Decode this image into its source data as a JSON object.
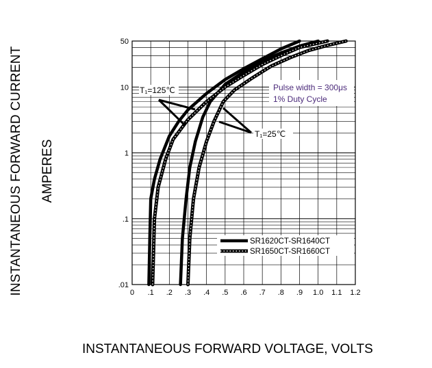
{
  "chart_data": {
    "type": "line",
    "title": "",
    "xlabel": "INSTANTANEOUS FORWARD VOLTAGE, VOLTS",
    "ylabel_line1": "INSTANTANEOUS FORWARD CURRENT",
    "ylabel_line2": "AMPERES",
    "xlim": [
      0,
      1.2
    ],
    "ylim": [
      0.01,
      50
    ],
    "yscale": "log",
    "grid": true,
    "x_ticks": [
      "0",
      ".1",
      ".2",
      ".3",
      ".4",
      ".5",
      ".6",
      ".7",
      ".8",
      ".9",
      "1.0",
      "1.1",
      "1.2"
    ],
    "y_ticks": [
      {
        "value": 0.01,
        "label": ".01"
      },
      {
        "value": 0.1,
        "label": ".1"
      },
      {
        "value": 1,
        "label": "1"
      },
      {
        "value": 10,
        "label": "10"
      },
      {
        "value": 50,
        "label": "50"
      }
    ],
    "annotations": {
      "pulse_line1": "Pulse width = 300μs",
      "pulse_line2": "1% Duty Cycle",
      "tj125": "T₁=125℃",
      "tj25": "T₁=25℃"
    },
    "series": [
      {
        "name": "SR1620CT-SR1640CT",
        "style": "solid",
        "condition": "TJ=125",
        "points": [
          [
            0.09,
            0.01
          ],
          [
            0.095,
            0.05
          ],
          [
            0.1,
            0.2
          ],
          [
            0.12,
            0.4
          ],
          [
            0.15,
            0.8
          ],
          [
            0.2,
            1.8
          ],
          [
            0.25,
            3
          ],
          [
            0.3,
            4.5
          ],
          [
            0.4,
            8
          ],
          [
            0.5,
            13
          ],
          [
            0.6,
            19
          ],
          [
            0.7,
            27
          ],
          [
            0.8,
            38
          ],
          [
            0.9,
            50
          ]
        ]
      },
      {
        "name": "SR1620CT-SR1640CT",
        "style": "solid",
        "condition": "TJ=25",
        "points": [
          [
            0.26,
            0.01
          ],
          [
            0.27,
            0.05
          ],
          [
            0.29,
            0.2
          ],
          [
            0.31,
            0.6
          ],
          [
            0.34,
            1.5
          ],
          [
            0.38,
            3.5
          ],
          [
            0.42,
            6
          ],
          [
            0.5,
            11
          ],
          [
            0.6,
            17
          ],
          [
            0.7,
            25
          ],
          [
            0.8,
            33
          ],
          [
            0.9,
            42
          ],
          [
            1.0,
            50
          ]
        ]
      },
      {
        "name": "SR1650CT-SR1660CT",
        "style": "dotted",
        "condition": "TJ=125",
        "points": [
          [
            0.11,
            0.01
          ],
          [
            0.115,
            0.03
          ],
          [
            0.12,
            0.1
          ],
          [
            0.14,
            0.3
          ],
          [
            0.18,
            0.8
          ],
          [
            0.22,
            1.6
          ],
          [
            0.3,
            3.2
          ],
          [
            0.4,
            6
          ],
          [
            0.5,
            10
          ],
          [
            0.6,
            15
          ],
          [
            0.7,
            22
          ],
          [
            0.8,
            30
          ],
          [
            0.9,
            40
          ],
          [
            1.05,
            50
          ]
        ]
      },
      {
        "name": "SR1650CT-SR1660CT",
        "style": "dotted",
        "condition": "TJ=25",
        "points": [
          [
            0.3,
            0.01
          ],
          [
            0.31,
            0.05
          ],
          [
            0.33,
            0.2
          ],
          [
            0.36,
            0.6
          ],
          [
            0.4,
            1.5
          ],
          [
            0.44,
            3
          ],
          [
            0.49,
            6
          ],
          [
            0.55,
            9
          ],
          [
            0.65,
            14
          ],
          [
            0.75,
            21
          ],
          [
            0.85,
            28
          ],
          [
            0.95,
            36
          ],
          [
            1.05,
            43
          ],
          [
            1.15,
            50
          ]
        ]
      }
    ],
    "legend": {
      "placement": "bottom-right",
      "entries": [
        {
          "label": "SR1620CT-SR1640CT",
          "style": "solid"
        },
        {
          "label": "SR1650CT-SR1660CT",
          "style": "dotted"
        }
      ]
    }
  }
}
